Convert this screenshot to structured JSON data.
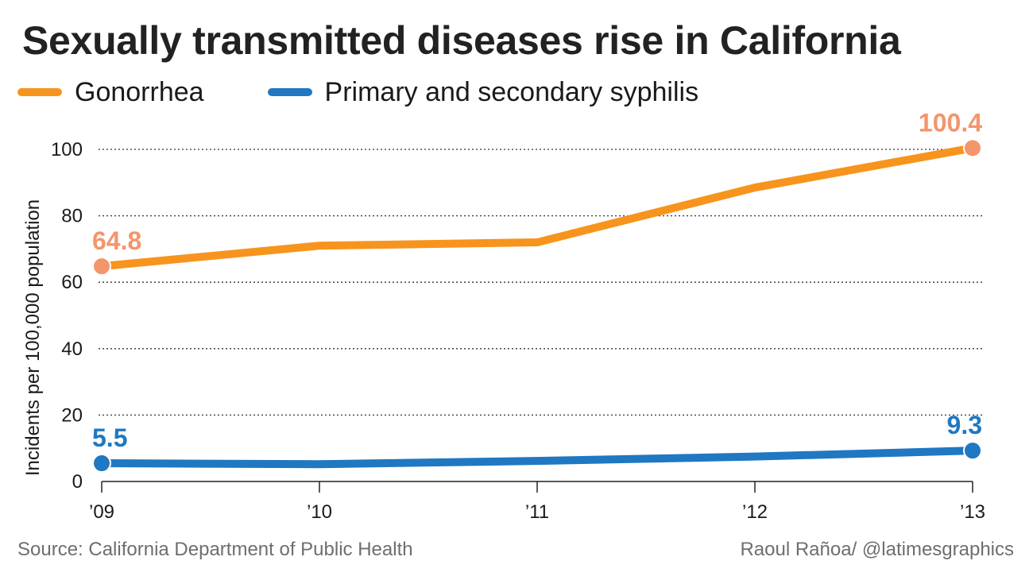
{
  "chart_data": {
    "type": "line",
    "title": "Sexually transmitted diseases rise in California",
    "categories": [
      "’09",
      "’10",
      "’11",
      "’12",
      "’13"
    ],
    "ylabel": "Incidents per 100,000 population",
    "ylim": [
      0,
      100
    ],
    "yticks": [
      0,
      20,
      40,
      60,
      80,
      100
    ],
    "grid": true,
    "legend_position": "top-left",
    "series": [
      {
        "name": "Gonorrhea",
        "color": "#f7941d",
        "marker_color": "#f4956b",
        "label_color": "#f4956b",
        "values": [
          64.8,
          71.0,
          72.0,
          88.5,
          100.4
        ],
        "labeled_points": [
          {
            "index": 0,
            "text": "64.8"
          },
          {
            "index": 4,
            "text": "100.4"
          }
        ]
      },
      {
        "name": "Primary and secondary syphilis",
        "color": "#1f78c1",
        "marker_color": "#1f78c1",
        "label_color": "#1f78c1",
        "values": [
          5.5,
          5.2,
          6.2,
          7.5,
          9.3
        ],
        "labeled_points": [
          {
            "index": 0,
            "text": "5.5"
          },
          {
            "index": 4,
            "text": "9.3"
          }
        ]
      }
    ]
  },
  "source": "Source: California Department of Public Health",
  "credit": "Raoul Rañoa/ @latimesgraphics"
}
